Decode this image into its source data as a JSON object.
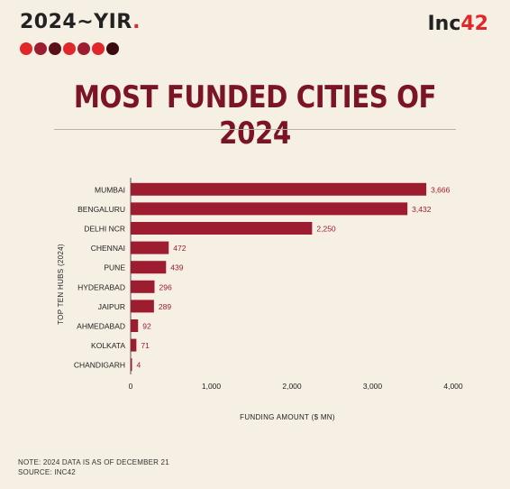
{
  "header": {
    "brand_main": "2024~YIR",
    "brand_dot": ".",
    "logo_main": "Inc",
    "logo_accent": "42"
  },
  "chart_data": {
    "type": "bar",
    "orientation": "horizontal",
    "title": "MOST FUNDED CITIES OF 2024",
    "xlabel": "FUNDING AMOUNT ($ MN)",
    "ylabel": "TOP TEN HUBS (2024)",
    "categories": [
      "MUMBAI",
      "BENGALURU",
      "DELHI NCR",
      "CHENNAI",
      "PUNE",
      "HYDERABAD",
      "JAIPUR",
      "AHMEDABAD",
      "KOLKATA",
      "CHANDIGARH"
    ],
    "values": [
      3666,
      3432,
      2250,
      472,
      439,
      296,
      289,
      92,
      71,
      4
    ],
    "value_labels": [
      "3,666",
      "3,432",
      "2,250",
      "472",
      "439",
      "296",
      "289",
      "92",
      "71",
      "4"
    ],
    "xlim": [
      0,
      4000
    ],
    "xticks": [
      0,
      1000,
      2000,
      3000,
      4000
    ],
    "xtick_labels": [
      "0",
      "1,000",
      "2,000",
      "3,000",
      "4,000"
    ],
    "grid": false,
    "bar_color": "#9e1c2f",
    "label_color": "#9e1c2f"
  },
  "notes": {
    "note": "NOTE: 2024 DATA IS AS OF DECEMBER 21",
    "source": "SOURCE: INC42"
  }
}
